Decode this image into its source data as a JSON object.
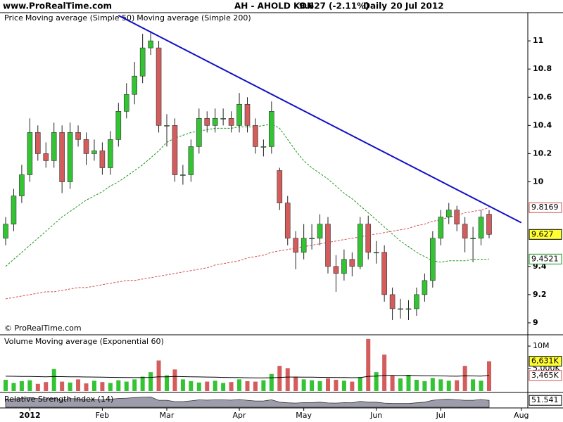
{
  "header": {
    "site": "www.ProRealTime.com",
    "symbol": "AH - AHOLD KON",
    "change": "(-2.11%)",
    "period": "Daily",
    "date": "20 Jul 2012"
  },
  "chart_data": [
    {
      "type": "candlestick",
      "title": "Price",
      "credit": "© ProRealTime.com",
      "categories": [
        null,
        null,
        null,
        "2012",
        null,
        null,
        null,
        null,
        null,
        null,
        null,
        null,
        "Feb",
        null,
        null,
        null,
        null,
        null,
        null,
        null,
        "Mar",
        null,
        null,
        null,
        null,
        null,
        null,
        null,
        null,
        "Apr",
        null,
        null,
        null,
        null,
        null,
        null,
        null,
        "May",
        null,
        null,
        null,
        null,
        null,
        null,
        null,
        null,
        "Jun",
        null,
        null,
        null,
        null,
        null,
        null,
        null,
        "Jul",
        null,
        null,
        null,
        null,
        null,
        null,
        null,
        null,
        null,
        "Aug"
      ],
      "open": [
        9.6,
        9.7,
        9.9,
        10.05,
        10.35,
        10.2,
        10.15,
        10.35,
        10.0,
        10.35,
        10.3,
        10.2,
        10.22,
        10.1,
        10.3,
        10.5,
        10.62,
        10.75,
        10.95,
        10.95,
        10.4,
        10.4,
        10.05,
        10.05,
        10.25,
        10.45,
        10.4,
        10.45,
        10.45,
        10.4,
        10.55,
        10.4,
        10.25,
        10.25,
        10.08,
        9.85,
        9.6,
        9.5,
        9.6,
        9.6,
        9.7,
        9.4,
        9.35,
        9.45,
        9.4,
        9.7,
        9.5,
        9.5,
        9.2,
        9.1,
        9.1,
        9.1,
        9.2,
        9.3,
        9.6,
        9.75,
        9.8,
        9.7,
        9.6,
        9.6,
        9.77,
        null,
        null,
        null,
        null
      ],
      "high": [
        9.75,
        9.95,
        10.12,
        10.45,
        10.4,
        10.28,
        10.42,
        10.4,
        10.42,
        10.4,
        10.35,
        10.3,
        10.28,
        10.36,
        10.56,
        10.7,
        10.85,
        11.05,
        11.07,
        11.0,
        10.48,
        10.45,
        10.12,
        10.3,
        10.52,
        10.5,
        10.52,
        10.52,
        10.5,
        10.63,
        10.6,
        10.45,
        10.3,
        10.57,
        10.1,
        9.9,
        9.65,
        9.7,
        9.7,
        9.77,
        9.75,
        9.48,
        9.52,
        9.5,
        9.75,
        9.76,
        9.58,
        9.55,
        9.25,
        9.17,
        9.16,
        9.25,
        9.35,
        9.65,
        9.8,
        9.85,
        9.83,
        9.75,
        9.68,
        9.8,
        9.8,
        null,
        null,
        null,
        null
      ],
      "low": [
        9.55,
        9.65,
        9.85,
        10.0,
        10.15,
        10.1,
        10.1,
        9.92,
        9.95,
        10.25,
        10.12,
        10.15,
        10.05,
        10.05,
        10.25,
        10.45,
        10.55,
        10.7,
        10.9,
        10.35,
        10.25,
        10.0,
        9.98,
        10.0,
        10.2,
        10.35,
        10.35,
        10.4,
        10.35,
        10.35,
        10.35,
        10.2,
        10.18,
        10.2,
        9.8,
        9.55,
        9.38,
        9.45,
        9.52,
        9.55,
        9.35,
        9.22,
        9.3,
        9.33,
        9.38,
        9.45,
        9.42,
        9.15,
        9.02,
        9.03,
        9.02,
        9.05,
        9.15,
        9.25,
        9.55,
        9.7,
        9.65,
        9.5,
        9.43,
        9.55,
        9.6,
        null,
        null,
        null,
        null
      ],
      "close": [
        9.7,
        9.9,
        10.05,
        10.35,
        10.2,
        10.15,
        10.35,
        10.0,
        10.35,
        10.3,
        10.2,
        10.22,
        10.1,
        10.3,
        10.5,
        10.62,
        10.75,
        10.95,
        11.0,
        10.4,
        10.4,
        10.05,
        10.05,
        10.25,
        10.45,
        10.4,
        10.45,
        10.45,
        10.4,
        10.55,
        10.4,
        10.25,
        10.25,
        10.5,
        9.85,
        9.6,
        9.5,
        9.6,
        9.6,
        9.7,
        9.4,
        9.35,
        9.45,
        9.4,
        9.7,
        9.5,
        9.5,
        9.2,
        9.1,
        9.1,
        9.1,
        9.2,
        9.3,
        9.6,
        9.75,
        9.8,
        9.7,
        9.6,
        9.6,
        9.75,
        9.627,
        null,
        null,
        null,
        null
      ],
      "up_color": "#33c333",
      "down_color": "#d35c5c",
      "series": [
        {
          "name": "Moving average (Simple 50)",
          "color": "#1a961a",
          "values": [
            9.4,
            9.45,
            9.5,
            9.55,
            9.6,
            9.65,
            9.7,
            9.75,
            9.79,
            9.83,
            9.87,
            9.9,
            9.93,
            9.97,
            10.0,
            10.04,
            10.08,
            10.12,
            10.17,
            10.22,
            10.28,
            10.31,
            10.33,
            10.35,
            10.36,
            10.37,
            10.38,
            10.38,
            10.38,
            10.39,
            10.39,
            10.39,
            10.4,
            10.41,
            10.38,
            10.3,
            10.22,
            10.15,
            10.1,
            10.06,
            10.02,
            9.97,
            9.92,
            9.88,
            9.83,
            9.78,
            9.73,
            9.68,
            9.63,
            9.58,
            9.54,
            9.5,
            9.47,
            9.44,
            9.43,
            9.44,
            9.44,
            9.44,
            9.45,
            9.45,
            9.4521,
            null,
            null,
            null,
            null
          ]
        },
        {
          "name": "Moving average (Simple 200)",
          "color": "#d05050",
          "values": [
            9.17,
            9.18,
            9.19,
            9.2,
            9.21,
            9.22,
            9.22,
            9.23,
            9.24,
            9.25,
            9.25,
            9.26,
            9.27,
            9.28,
            9.29,
            9.3,
            9.3,
            9.31,
            9.32,
            9.33,
            9.34,
            9.35,
            9.36,
            9.37,
            9.38,
            9.39,
            9.41,
            9.42,
            9.43,
            9.44,
            9.46,
            9.47,
            9.48,
            9.5,
            9.51,
            9.52,
            9.53,
            9.54,
            9.55,
            9.56,
            9.57,
            9.58,
            9.59,
            9.6,
            9.61,
            9.62,
            9.63,
            9.64,
            9.65,
            9.66,
            9.67,
            9.69,
            9.7,
            9.72,
            9.73,
            9.75,
            9.76,
            9.78,
            9.79,
            9.8,
            9.8169,
            null,
            null,
            null,
            null
          ]
        }
      ],
      "trendline": {
        "color": "#1010c8",
        "x": [
          14,
          64
        ],
        "values": [
          11.18,
          9.71
        ]
      },
      "ylim": [
        8.92,
        11.2
      ],
      "yticks": [
        9,
        9.2,
        9.4,
        10,
        10.2,
        10.4,
        10.6,
        10.8,
        11
      ]
    },
    {
      "type": "volume",
      "title": "Volume",
      "values": [
        2.5,
        1.8,
        2.2,
        2.4,
        1.6,
        2.0,
        4.9,
        2.1,
        1.9,
        2.6,
        1.7,
        2.3,
        2.0,
        1.8,
        2.4,
        2.1,
        2.6,
        3.2,
        4.2,
        6.8,
        3.5,
        4.8,
        2.6,
        2.2,
        1.9,
        2.1,
        2.3,
        1.8,
        2.0,
        2.6,
        2.2,
        2.1,
        2.4,
        3.8,
        5.6,
        5.1,
        3.2,
        2.6,
        2.4,
        2.2,
        2.8,
        2.5,
        2.3,
        2.1,
        3.1,
        11.6,
        4.2,
        8.1,
        3.4,
        2.8,
        3.6,
        2.5,
        2.2,
        2.9,
        2.6,
        2.3,
        2.4,
        5.6,
        2.6,
        2.3,
        6.631
      ],
      "value_labels": [
        null,
        null,
        null,
        null,
        null,
        null,
        null,
        null,
        null,
        null,
        null,
        null,
        null,
        null,
        null,
        null,
        null,
        null,
        null,
        null,
        null,
        null,
        null,
        null,
        null,
        null,
        null,
        null,
        null,
        null,
        null,
        null,
        null,
        null,
        null,
        null,
        null,
        null,
        null,
        null,
        null,
        null,
        null,
        null,
        null,
        null,
        null,
        null,
        null,
        null,
        null,
        null,
        null,
        null,
        null,
        null,
        null,
        null,
        null,
        null,
        "6,631K"
      ],
      "series": [
        {
          "name": "Moving average (Exponential 60)",
          "color": "#000000",
          "values": [
            3.3,
            3.28,
            3.26,
            3.24,
            3.2,
            3.18,
            3.22,
            3.2,
            3.17,
            3.16,
            3.13,
            3.11,
            3.08,
            3.05,
            3.03,
            3.0,
            2.99,
            3.0,
            3.04,
            3.16,
            3.17,
            3.23,
            3.21,
            3.18,
            3.14,
            3.11,
            3.08,
            3.03,
            3.0,
            2.98,
            2.96,
            2.94,
            2.92,
            2.95,
            3.04,
            3.11,
            3.11,
            3.1,
            3.08,
            3.05,
            3.04,
            3.02,
            3.0,
            2.97,
            2.98,
            3.27,
            3.31,
            3.48,
            3.48,
            3.46,
            3.47,
            3.44,
            3.4,
            3.39,
            3.36,
            3.33,
            3.3,
            3.38,
            3.36,
            3.33,
            3.465
          ],
          "value_labels": [
            null,
            null,
            null,
            null,
            null,
            null,
            null,
            null,
            null,
            null,
            null,
            null,
            null,
            null,
            null,
            null,
            null,
            null,
            null,
            null,
            null,
            null,
            null,
            null,
            null,
            null,
            null,
            null,
            null,
            null,
            null,
            null,
            null,
            null,
            null,
            null,
            null,
            null,
            null,
            null,
            null,
            null,
            null,
            null,
            null,
            null,
            null,
            null,
            null,
            null,
            null,
            null,
            null,
            null,
            null,
            null,
            null,
            null,
            null,
            null,
            "3,465K"
          ]
        }
      ],
      "ylim": [
        0,
        12.2
      ],
      "yticks": [
        {
          "value": 5,
          "label": "5,000K"
        },
        {
          "value": 10,
          "label": "10M"
        }
      ]
    },
    {
      "type": "area",
      "title": "Relative Strength Index (14)",
      "color": "#9c9cab",
      "values": [
        55,
        62,
        66,
        72,
        64,
        62,
        68,
        55,
        65,
        62,
        58,
        59,
        55,
        60,
        66,
        68,
        72,
        76,
        77,
        52,
        52,
        42,
        42,
        48,
        55,
        53,
        55,
        55,
        53,
        58,
        52,
        47,
        47,
        56,
        38,
        33,
        31,
        35,
        35,
        38,
        32,
        31,
        34,
        33,
        44,
        38,
        38,
        31,
        28,
        28,
        28,
        33,
        38,
        52,
        58,
        60,
        56,
        52,
        52,
        58,
        51.541
      ],
      "ylim": [
        0,
        100
      ]
    }
  ]
}
